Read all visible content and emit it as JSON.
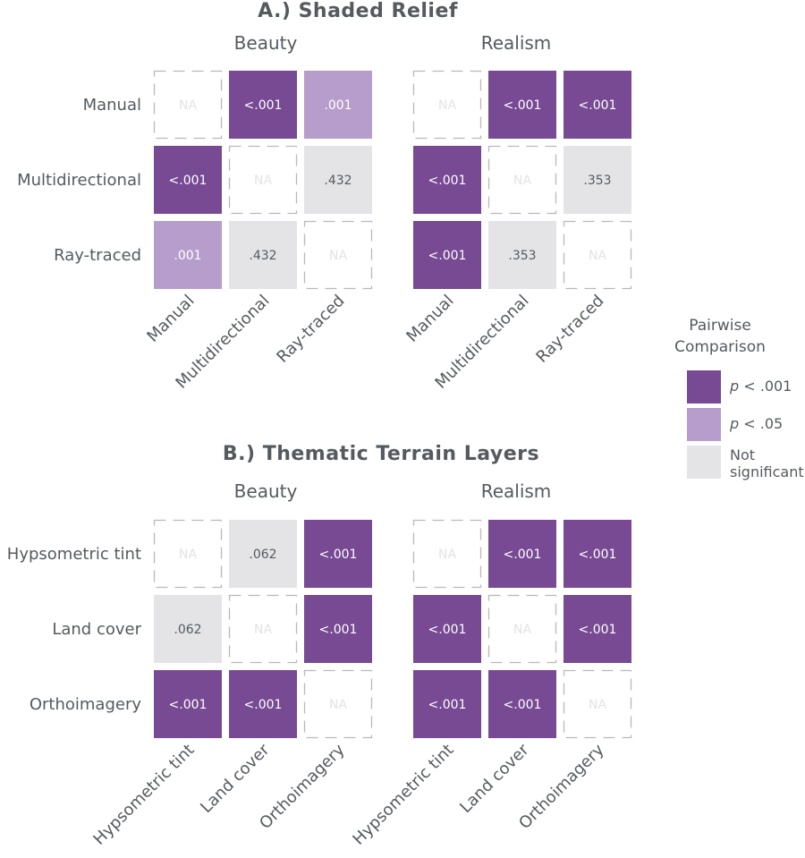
{
  "colors": {
    "strong": "#774a93",
    "weak": "#b79dcb",
    "ns": "#e4e4e6",
    "na_border": "#b9b9b9",
    "na_text": "#e3e3e3",
    "text": "#555a5f"
  },
  "chart_data": [
    {
      "type": "heatmap",
      "title": "A.) Shaded Relief",
      "panels": [
        {
          "title": "Beauty",
          "rows": [
            "Manual",
            "Multidirectional",
            "Ray-traced"
          ],
          "columns": [
            "Manual",
            "Multidirectional",
            "Ray-traced"
          ],
          "cells": [
            [
              {
                "label": "NA",
                "level": "na"
              },
              {
                "label": "<.001",
                "level": "strong"
              },
              {
                "label": ".001",
                "level": "weak"
              }
            ],
            [
              {
                "label": "<.001",
                "level": "strong"
              },
              {
                "label": "NA",
                "level": "na"
              },
              {
                "label": ".432",
                "level": "ns"
              }
            ],
            [
              {
                "label": ".001",
                "level": "weak"
              },
              {
                "label": ".432",
                "level": "ns"
              },
              {
                "label": "NA",
                "level": "na"
              }
            ]
          ]
        },
        {
          "title": "Realism",
          "rows": [
            "Manual",
            "Multidirectional",
            "Ray-traced"
          ],
          "columns": [
            "Manual",
            "Multidirectional",
            "Ray-traced"
          ],
          "cells": [
            [
              {
                "label": "NA",
                "level": "na"
              },
              {
                "label": "<.001",
                "level": "strong"
              },
              {
                "label": "<.001",
                "level": "strong"
              }
            ],
            [
              {
                "label": "<.001",
                "level": "strong"
              },
              {
                "label": "NA",
                "level": "na"
              },
              {
                "label": ".353",
                "level": "ns"
              }
            ],
            [
              {
                "label": "<.001",
                "level": "strong"
              },
              {
                "label": ".353",
                "level": "ns"
              },
              {
                "label": "NA",
                "level": "na"
              }
            ]
          ]
        }
      ]
    },
    {
      "type": "heatmap",
      "title": "B.) Thematic Terrain Layers",
      "panels": [
        {
          "title": "Beauty",
          "rows": [
            "Hypsometric tint",
            "Land cover",
            "Orthoimagery"
          ],
          "columns": [
            "Hypsometric tint",
            "Land cover",
            "Orthoimagery"
          ],
          "cells": [
            [
              {
                "label": "NA",
                "level": "na"
              },
              {
                "label": ".062",
                "level": "ns"
              },
              {
                "label": "<.001",
                "level": "strong"
              }
            ],
            [
              {
                "label": ".062",
                "level": "ns"
              },
              {
                "label": "NA",
                "level": "na"
              },
              {
                "label": "<.001",
                "level": "strong"
              }
            ],
            [
              {
                "label": "<.001",
                "level": "strong"
              },
              {
                "label": "<.001",
                "level": "strong"
              },
              {
                "label": "NA",
                "level": "na"
              }
            ]
          ]
        },
        {
          "title": "Realism",
          "rows": [
            "Hypsometric tint",
            "Land cover",
            "Orthoimagery"
          ],
          "columns": [
            "Hypsometric tint",
            "Land cover",
            "Orthoimagery"
          ],
          "cells": [
            [
              {
                "label": "NA",
                "level": "na"
              },
              {
                "label": "<.001",
                "level": "strong"
              },
              {
                "label": "<.001",
                "level": "strong"
              }
            ],
            [
              {
                "label": "<.001",
                "level": "strong"
              },
              {
                "label": "NA",
                "level": "na"
              },
              {
                "label": "<.001",
                "level": "strong"
              }
            ],
            [
              {
                "label": "<.001",
                "level": "strong"
              },
              {
                "label": "<.001",
                "level": "strong"
              },
              {
                "label": "NA",
                "level": "na"
              }
            ]
          ]
        }
      ]
    }
  ],
  "legend": {
    "title_line1": "Pairwise",
    "title_line2": "Comparison",
    "items": [
      {
        "level": "strong",
        "italic": "p",
        "rest": " < .001"
      },
      {
        "level": "weak",
        "italic": "p",
        "rest": " < .05"
      },
      {
        "level": "ns",
        "line1": "Not",
        "line2": "significant"
      }
    ]
  }
}
